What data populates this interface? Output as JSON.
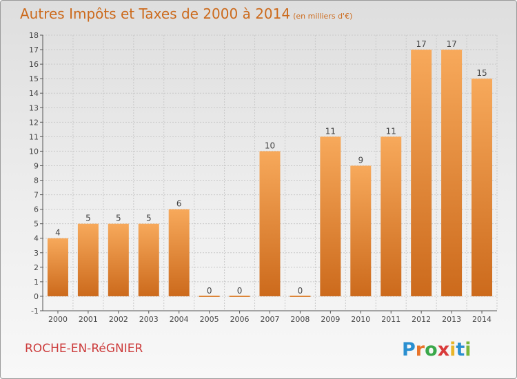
{
  "header": {
    "title": "Autres Impôts et Taxes de 2000 à 2014",
    "subtitle": "(en milliers d'€)"
  },
  "footer": {
    "commune": "ROCHE-EN-RéGNIER",
    "brand": "Proxiti"
  },
  "colors": {
    "bar_light": "#f7a95b",
    "bar_dark": "#cc6a1c",
    "title": "#cc6a1c",
    "commune": "#cc3b3b"
  },
  "chart_data": {
    "type": "bar",
    "title": "Autres Impôts et Taxes de 2000 à 2014",
    "subtitle": "(en milliers d'€)",
    "categories": [
      "2000",
      "2001",
      "2002",
      "2003",
      "2004",
      "2005",
      "2006",
      "2007",
      "2008",
      "2009",
      "2010",
      "2011",
      "2012",
      "2013",
      "2014"
    ],
    "values": [
      4,
      5,
      5,
      5,
      6,
      0,
      0,
      10,
      0,
      11,
      9,
      11,
      17,
      17,
      15
    ],
    "data_labels": [
      "4",
      "5",
      "5",
      "5",
      "6",
      "0",
      "0",
      "10",
      "0",
      "11",
      "9",
      "11",
      "17",
      "17",
      "15"
    ],
    "ylim": [
      -1,
      18
    ],
    "yticks": [
      "-1",
      "0",
      "1",
      "2",
      "3",
      "4",
      "5",
      "6",
      "7",
      "8",
      "9",
      "10",
      "11",
      "12",
      "13",
      "14",
      "15",
      "16",
      "17",
      "18"
    ],
    "grid": true,
    "legend": "none"
  }
}
